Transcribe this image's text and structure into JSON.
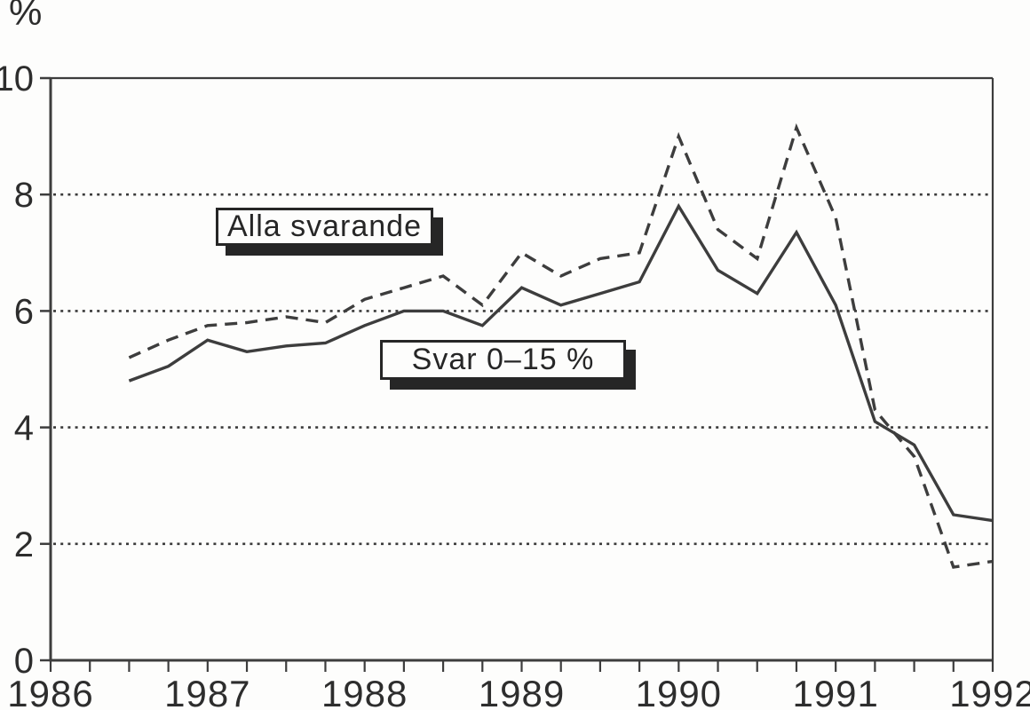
{
  "chart_data": {
    "type": "line",
    "title": "",
    "xlabel": "",
    "ylabel": "%",
    "xlim": [
      1986,
      1992
    ],
    "ylim": [
      0,
      10
    ],
    "x_ticks": [
      1986,
      1987,
      1988,
      1989,
      1990,
      1991,
      1992
    ],
    "y_ticks": [
      0,
      2,
      4,
      6,
      8,
      10
    ],
    "grid": "horizontal dotted lines at y = 2, 4, 6, 8",
    "legend_position": "inline boxed labels inside plot area",
    "x": [
      1986.5,
      1986.75,
      1987.0,
      1987.25,
      1987.5,
      1987.75,
      1988.0,
      1988.25,
      1988.5,
      1988.75,
      1989.0,
      1989.25,
      1989.5,
      1989.75,
      1990.0,
      1990.25,
      1990.5,
      1990.75,
      1991.0,
      1991.25,
      1991.5,
      1991.75,
      1992.0
    ],
    "series": [
      {
        "name": "Alla svarande",
        "style": "dashed",
        "values": [
          5.2,
          5.5,
          5.75,
          5.8,
          5.9,
          5.8,
          6.2,
          6.4,
          6.6,
          6.1,
          7.0,
          6.6,
          6.9,
          7.0,
          9.0,
          7.4,
          6.9,
          9.15,
          7.6,
          4.3,
          3.5,
          1.6,
          1.7
        ]
      },
      {
        "name": "Svar 0–15 %",
        "style": "solid",
        "values": [
          4.8,
          5.05,
          5.5,
          5.3,
          5.4,
          5.45,
          5.75,
          6.0,
          6.0,
          5.75,
          6.4,
          6.1,
          6.3,
          6.5,
          7.8,
          6.7,
          6.3,
          7.35,
          6.1,
          4.1,
          3.7,
          2.5,
          2.4
        ]
      }
    ],
    "colors": {
      "ink": "#2d2d2d",
      "line": "#3d3d3d",
      "grid": "#3a3a3a",
      "background": "#fdfdfc",
      "legend_shadow": "#262626"
    }
  }
}
